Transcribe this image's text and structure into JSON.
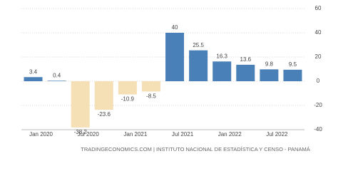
{
  "chart_data": {
    "type": "bar",
    "categories": [
      "Jan 2020",
      null,
      "Jul 2020",
      null,
      "Jan 2021",
      null,
      "Jul 2021",
      null,
      "Jan 2022",
      null,
      "Jul 2022",
      null
    ],
    "values": [
      3.4,
      0.4,
      -38.2,
      -23.6,
      -10.9,
      -8.5,
      40,
      25.5,
      16.3,
      13.6,
      9.8,
      9.5
    ],
    "positive_color": "#4a80b8",
    "negative_color": "#f5dfb5",
    "ylim": [
      -40,
      60
    ],
    "yticks": [
      -40,
      -20,
      0,
      20,
      40,
      60
    ],
    "grid": true,
    "source": "TRADINGECONOMICS.COM | INSTITUTO NACIONAL DE ESTADÍSTICA Y CENSO - PANAMÁ"
  }
}
